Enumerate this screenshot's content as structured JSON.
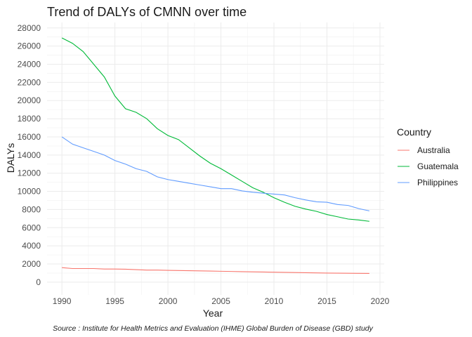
{
  "chart_data": {
    "type": "line",
    "title": "Trend of DALYs of CMNN over time",
    "xlabel": "Year",
    "ylabel": "DALYs",
    "xlim": [
      1988.6,
      2020.4
    ],
    "ylim": [
      -1400,
      28600
    ],
    "x_ticks": [
      1990,
      1995,
      2000,
      2005,
      2010,
      2015,
      2020
    ],
    "y_ticks": [
      0,
      2000,
      4000,
      6000,
      8000,
      10000,
      12000,
      14000,
      16000,
      18000,
      20000,
      22000,
      24000,
      26000,
      28000
    ],
    "grid": true,
    "legend_title": "Country",
    "legend_position": "right",
    "caption": "Source : Institute for Health Metrics and Evaluation (IHME) Global Burden of Disease (GBD) study",
    "x": [
      1990,
      1991,
      1992,
      1993,
      1994,
      1995,
      1996,
      1997,
      1998,
      1999,
      2000,
      2001,
      2002,
      2003,
      2004,
      2005,
      2006,
      2007,
      2008,
      2009,
      2010,
      2011,
      2012,
      2013,
      2014,
      2015,
      2016,
      2017,
      2018,
      2019
    ],
    "series": [
      {
        "name": "Australia",
        "color": "#F8766D",
        "values": [
          1600,
          1500,
          1500,
          1500,
          1450,
          1450,
          1430,
          1380,
          1330,
          1330,
          1300,
          1280,
          1260,
          1240,
          1220,
          1200,
          1180,
          1160,
          1140,
          1120,
          1100,
          1080,
          1060,
          1040,
          1020,
          1000,
          990,
          980,
          970,
          960
        ]
      },
      {
        "name": "Guatemala",
        "color": "#00BA38",
        "values": [
          26900,
          26300,
          25400,
          24000,
          22600,
          20500,
          19100,
          18700,
          18000,
          16900,
          16150,
          15700,
          14800,
          13900,
          13100,
          12500,
          11800,
          11100,
          10400,
          9900,
          9300,
          8800,
          8350,
          8050,
          7800,
          7450,
          7200,
          6950,
          6850,
          6700
        ]
      },
      {
        "name": "Philippines",
        "color": "#619CFF",
        "values": [
          16000,
          15200,
          14800,
          14400,
          14000,
          13400,
          13000,
          12500,
          12200,
          11600,
          11300,
          11100,
          10900,
          10700,
          10500,
          10300,
          10300,
          10050,
          9900,
          9800,
          9700,
          9600,
          9300,
          9050,
          8850,
          8800,
          8550,
          8450,
          8100,
          7850
        ]
      }
    ]
  }
}
